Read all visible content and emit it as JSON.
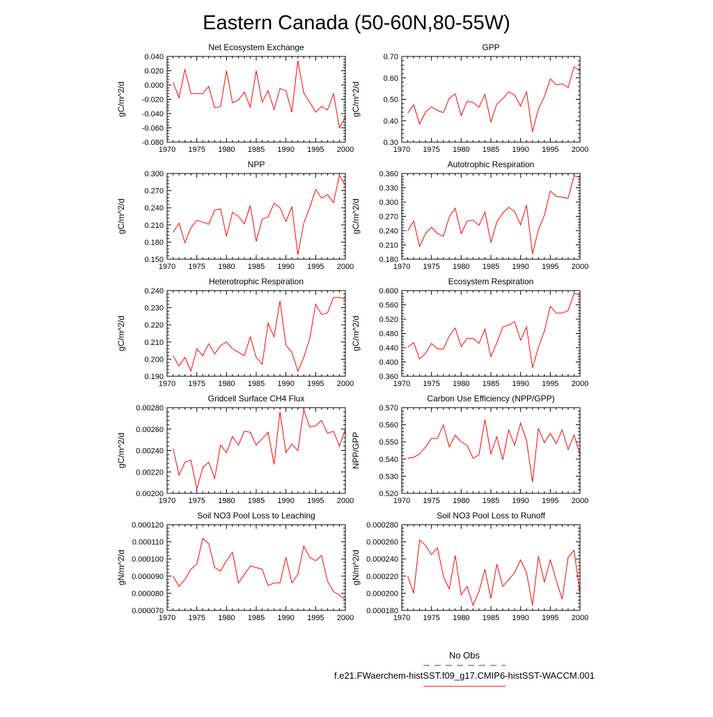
{
  "page": {
    "title": "Eastern Canada (50-60N,80-55W)"
  },
  "legend": {
    "items": [
      {
        "label": "No Obs",
        "color": "#3333cc",
        "dashed": true
      },
      {
        "label": "f.e21.FWaerchem-histSST.f09_g17.CMIP6-histSST-WACCM.001",
        "color": "#ff0000",
        "dashed": false
      }
    ]
  },
  "chart_data": [
    {
      "type": "line",
      "title": "Net Ecosystem Exchange",
      "ylabel": "gC/m^2/d",
      "ylim": [
        -0.08,
        0.04
      ],
      "yticks": [
        "-0.080",
        "-0.060",
        "-0.040",
        "-0.020",
        "0.000",
        "0.020",
        "0.040"
      ],
      "xlim": [
        1970,
        2000
      ],
      "xticks": [
        "1970",
        "1975",
        "1980",
        "1985",
        "1990",
        "1995",
        "2000"
      ],
      "series": [
        {
          "color": "#ff0000",
          "x_start": 1971,
          "values": [
            0.004,
            -0.018,
            0.022,
            -0.012,
            -0.012,
            -0.012,
            -0.002,
            -0.032,
            -0.03,
            0.02,
            -0.025,
            -0.021,
            -0.01,
            -0.031,
            0.02,
            -0.024,
            -0.008,
            -0.034,
            -0.005,
            -0.008,
            -0.038,
            0.034,
            -0.011,
            -0.024,
            -0.038,
            -0.03,
            -0.035,
            -0.012,
            -0.06,
            -0.045
          ]
        }
      ]
    },
    {
      "type": "line",
      "title": "GPP",
      "ylabel": "gC/m^2/d",
      "ylim": [
        0.3,
        0.7
      ],
      "yticks": [
        "0.30",
        "0.40",
        "0.50",
        "0.60",
        "0.70"
      ],
      "xlim": [
        1970,
        2000
      ],
      "xticks": [
        "1970",
        "1975",
        "1980",
        "1985",
        "1990",
        "1995",
        "2000"
      ],
      "series": [
        {
          "color": "#ff0000",
          "x_start": 1971,
          "values": [
            0.435,
            0.475,
            0.385,
            0.44,
            0.465,
            0.448,
            0.438,
            0.505,
            0.525,
            0.425,
            0.49,
            0.485,
            0.463,
            0.523,
            0.395,
            0.478,
            0.503,
            0.535,
            0.52,
            0.468,
            0.535,
            0.348,
            0.455,
            0.512,
            0.595,
            0.568,
            0.572,
            0.555,
            0.652,
            0.632
          ]
        }
      ]
    },
    {
      "type": "line",
      "title": "NPP",
      "ylabel": "gC/m^2/d",
      "ylim": [
        0.15,
        0.3
      ],
      "yticks": [
        "0.150",
        "0.180",
        "0.210",
        "0.240",
        "0.270",
        "0.300"
      ],
      "xlim": [
        1970,
        2000
      ],
      "xticks": [
        "1970",
        "1975",
        "1980",
        "1985",
        "1990",
        "1995",
        "2000"
      ],
      "series": [
        {
          "color": "#ff0000",
          "x_start": 1971,
          "values": [
            0.197,
            0.213,
            0.179,
            0.205,
            0.218,
            0.215,
            0.211,
            0.236,
            0.238,
            0.19,
            0.232,
            0.225,
            0.212,
            0.244,
            0.181,
            0.22,
            0.224,
            0.248,
            0.24,
            0.216,
            0.242,
            0.158,
            0.213,
            0.24,
            0.272,
            0.257,
            0.263,
            0.249,
            0.297,
            0.279
          ]
        }
      ]
    },
    {
      "type": "line",
      "title": "Autotrophic Respiration",
      "ylabel": "gC/m^2/d",
      "ylim": [
        0.18,
        0.36
      ],
      "yticks": [
        "0.180",
        "0.210",
        "0.240",
        "0.270",
        "0.300",
        "0.330",
        "0.360"
      ],
      "xlim": [
        1970,
        2000
      ],
      "xticks": [
        "1970",
        "1975",
        "1980",
        "1985",
        "1990",
        "1995",
        "2000"
      ],
      "series": [
        {
          "color": "#ff0000",
          "x_start": 1971,
          "values": [
            0.239,
            0.26,
            0.207,
            0.234,
            0.247,
            0.234,
            0.228,
            0.269,
            0.287,
            0.234,
            0.26,
            0.262,
            0.251,
            0.279,
            0.215,
            0.258,
            0.277,
            0.289,
            0.28,
            0.252,
            0.294,
            0.191,
            0.242,
            0.272,
            0.323,
            0.312,
            0.31,
            0.308,
            0.355,
            0.352
          ]
        }
      ]
    },
    {
      "type": "line",
      "title": "Heterotrophic Respiration",
      "ylabel": "gC/m^2/d",
      "ylim": [
        0.19,
        0.24
      ],
      "yticks": [
        "0.190",
        "0.200",
        "0.210",
        "0.220",
        "0.230",
        "0.240"
      ],
      "xlim": [
        1970,
        2000
      ],
      "xticks": [
        "1970",
        "1975",
        "1980",
        "1985",
        "1990",
        "1995",
        "2000"
      ],
      "series": [
        {
          "color": "#ff0000",
          "x_start": 1971,
          "values": [
            0.202,
            0.196,
            0.201,
            0.193,
            0.206,
            0.202,
            0.209,
            0.203,
            0.208,
            0.21,
            0.206,
            0.204,
            0.202,
            0.213,
            0.201,
            0.197,
            0.221,
            0.213,
            0.234,
            0.208,
            0.204,
            0.193,
            0.201,
            0.212,
            0.232,
            0.226,
            0.227,
            0.236,
            0.236,
            0.235
          ]
        }
      ]
    },
    {
      "type": "line",
      "title": "Ecosystem Respiration",
      "ylabel": "gC/m^2/d",
      "ylim": [
        0.36,
        0.6
      ],
      "yticks": [
        "0.360",
        "0.400",
        "0.440",
        "0.480",
        "0.520",
        "0.560",
        "0.600"
      ],
      "xlim": [
        1970,
        2000
      ],
      "xticks": [
        "1970",
        "1975",
        "1980",
        "1985",
        "1990",
        "1995",
        "2000"
      ],
      "series": [
        {
          "color": "#ff0000",
          "x_start": 1971,
          "values": [
            0.441,
            0.455,
            0.408,
            0.424,
            0.452,
            0.437,
            0.436,
            0.473,
            0.495,
            0.443,
            0.466,
            0.466,
            0.452,
            0.492,
            0.415,
            0.453,
            0.498,
            0.503,
            0.513,
            0.461,
            0.498,
            0.384,
            0.441,
            0.486,
            0.556,
            0.537,
            0.537,
            0.544,
            0.592,
            0.588
          ]
        }
      ]
    },
    {
      "type": "line",
      "title": "Gridcell Surface CH4 Flux",
      "ylabel": "gC/m^2/d",
      "ylim": [
        0.002,
        0.0028
      ],
      "yticks": [
        "0.00200",
        "0.00220",
        "0.00240",
        "0.00260",
        "0.00280"
      ],
      "xlim": [
        1970,
        2000
      ],
      "xticks": [
        "1970",
        "1975",
        "1980",
        "1985",
        "1990",
        "1995",
        "2000"
      ],
      "series": [
        {
          "color": "#ff0000",
          "x_start": 1971,
          "values": [
            0.00242,
            0.00217,
            0.00229,
            0.00231,
            0.00204,
            0.00224,
            0.00229,
            0.00214,
            0.00245,
            0.00238,
            0.00253,
            0.00245,
            0.00258,
            0.00257,
            0.00245,
            0.00251,
            0.00257,
            0.00227,
            0.00276,
            0.00238,
            0.00246,
            0.0024,
            0.00278,
            0.00262,
            0.00263,
            0.00268,
            0.00256,
            0.00258,
            0.00244,
            0.0026
          ]
        }
      ]
    },
    {
      "type": "line",
      "title": "Carbon Use Efficiency (NPP/GPP)",
      "ylabel": "NPP/GPP",
      "ylim": [
        0.52,
        0.57
      ],
      "yticks": [
        "0.520",
        "0.530",
        "0.540",
        "0.550",
        "0.560",
        "0.570"
      ],
      "xlim": [
        1970,
        2000
      ],
      "xticks": [
        "1970",
        "1975",
        "1980",
        "1985",
        "1990",
        "1995",
        "2000"
      ],
      "series": [
        {
          "color": "#ff0000",
          "x_start": 1971,
          "values": [
            0.5405,
            0.541,
            0.543,
            0.547,
            0.552,
            0.552,
            0.56,
            0.547,
            0.554,
            0.55,
            0.548,
            0.5405,
            0.5425,
            0.563,
            0.543,
            0.553,
            0.5395,
            0.557,
            0.548,
            0.561,
            0.551,
            0.5265,
            0.558,
            0.5495,
            0.555,
            0.549,
            0.557,
            0.5455,
            0.554,
            0.5425
          ]
        }
      ]
    },
    {
      "type": "line",
      "title": "Soil NO3 Pool Loss to Leaching",
      "ylabel": "gN/m^2/d",
      "ylim": [
        7e-05,
        0.00012
      ],
      "yticks": [
        "0.000070",
        "0.000080",
        "0.000090",
        "0.000100",
        "0.000110",
        "0.000120"
      ],
      "xlim": [
        1970,
        2000
      ],
      "xticks": [
        "1970",
        "1975",
        "1980",
        "1985",
        "1990",
        "1995",
        "2000"
      ],
      "series": [
        {
          "color": "#ff0000",
          "x_start": 1971,
          "values": [
            9e-05,
            8.4e-05,
            8.8e-05,
            9.4e-05,
            9.7e-05,
            0.000112,
            0.000109,
            9.5e-05,
            9.3e-05,
            9.9e-05,
            0.000104,
            8.6e-05,
            9.1e-05,
            9.6e-05,
            9.5e-05,
            9.4e-05,
            8.45e-05,
            8.6e-05,
            8.6e-05,
            0.000101,
            8.6e-05,
            9.1e-05,
            0.0001075,
            0.000101,
            9.9e-05,
            0.000102,
            8.7e-05,
            8.1e-05,
            7.9e-05,
            7.6e-05
          ]
        }
      ]
    },
    {
      "type": "line",
      "title": "Soil NO3 Pool Loss to Runoff",
      "ylabel": "gN/m^2/d",
      "ylim": [
        0.00018,
        0.00028
      ],
      "yticks": [
        "0.000180",
        "0.000200",
        "0.000220",
        "0.000240",
        "0.000260",
        "0.000280"
      ],
      "xlim": [
        1970,
        2000
      ],
      "xticks": [
        "1970",
        "1975",
        "1980",
        "1985",
        "1990",
        "1995",
        "2000"
      ],
      "series": [
        {
          "color": "#ff0000",
          "x_start": 1971,
          "values": [
            0.00022,
            0.0002,
            0.000262,
            0.000256,
            0.000245,
            0.000253,
            0.00022,
            0.000205,
            0.000244,
            0.000198,
            0.000208,
            0.000186,
            0.000202,
            0.000228,
            0.000194,
            0.000234,
            0.000208,
            0.000216,
            0.000224,
            0.000239,
            0.000224,
            0.000186,
            0.000243,
            0.000213,
            0.000239,
            0.000215,
            0.000193,
            0.000242,
            0.00025,
            0.0002
          ]
        }
      ]
    }
  ]
}
